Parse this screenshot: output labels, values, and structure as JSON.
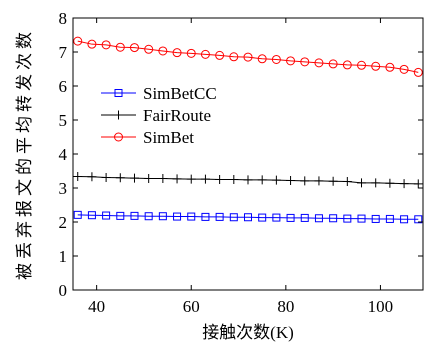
{
  "chart_data": {
    "type": "line",
    "xlabel": "接触次数(K)",
    "ylabel": "被丢弃报文的平均转发次数",
    "xlim": [
      35,
      109
    ],
    "ylim": [
      0,
      8
    ],
    "xticks": [
      40,
      60,
      80,
      100
    ],
    "yticks": [
      0,
      1,
      2,
      3,
      4,
      5,
      6,
      7,
      8
    ],
    "grid": false,
    "legend_position": "upper-left",
    "x": [
      36,
      39,
      42,
      45,
      48,
      51,
      54,
      57,
      60,
      63,
      66,
      69,
      72,
      75,
      78,
      81,
      84,
      87,
      90,
      93,
      96,
      99,
      102,
      105,
      108
    ],
    "series": [
      {
        "name": "SimBetCC",
        "color": "#0000ff",
        "marker": "square",
        "values": [
          2.21,
          2.2,
          2.19,
          2.18,
          2.18,
          2.17,
          2.17,
          2.16,
          2.16,
          2.15,
          2.15,
          2.14,
          2.14,
          2.13,
          2.13,
          2.12,
          2.12,
          2.11,
          2.11,
          2.1,
          2.1,
          2.09,
          2.09,
          2.08,
          2.08
        ]
      },
      {
        "name": "FairRoute",
        "color": "#000000",
        "marker": "plus",
        "values": [
          3.34,
          3.33,
          3.31,
          3.3,
          3.29,
          3.28,
          3.28,
          3.27,
          3.26,
          3.26,
          3.25,
          3.25,
          3.24,
          3.24,
          3.23,
          3.22,
          3.21,
          3.21,
          3.2,
          3.19,
          3.15,
          3.15,
          3.14,
          3.13,
          3.12
        ]
      },
      {
        "name": "SimBet",
        "color": "#ff0000",
        "marker": "circle",
        "values": [
          7.32,
          7.23,
          7.21,
          7.14,
          7.13,
          7.08,
          7.03,
          6.98,
          6.96,
          6.93,
          6.9,
          6.86,
          6.85,
          6.8,
          6.78,
          6.74,
          6.71,
          6.68,
          6.65,
          6.62,
          6.61,
          6.58,
          6.55,
          6.49,
          6.4
        ]
      }
    ]
  }
}
